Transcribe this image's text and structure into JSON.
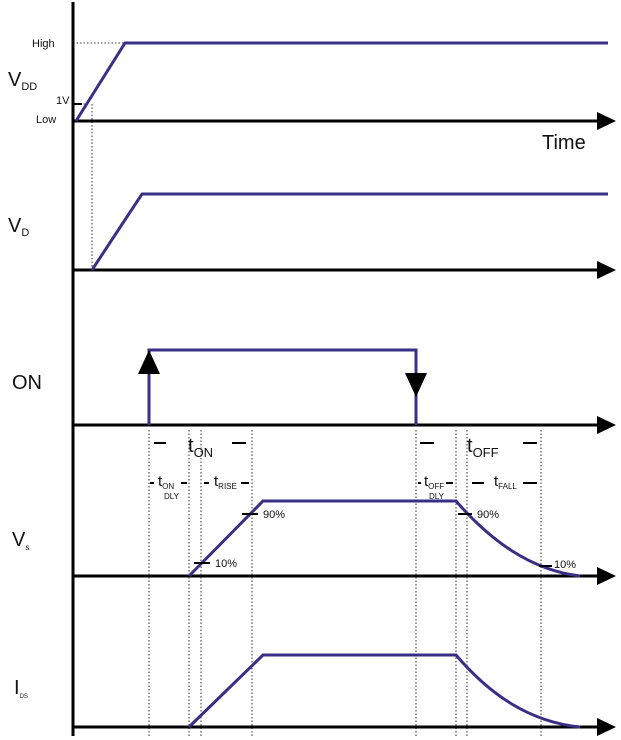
{
  "colors": {
    "signal": "#3a2f86",
    "axis": "#000000",
    "background": "#ffffff"
  },
  "labels": {
    "vdd_main": "V",
    "vdd_sub": "DD",
    "high": "High",
    "low": "Low",
    "one_v": "1V",
    "time": "Time",
    "vd_main": "V",
    "vd_sub": "D",
    "on": "ON",
    "ton_main": "t",
    "ton_sub": "ON",
    "toff_main": "t",
    "toff_sub": "OFF",
    "ton_dly_main": "t",
    "ton_dly_sub1": "ON",
    "ton_dly_sub2": "DLY",
    "trise_main": "t",
    "trise_sub": "RISE",
    "toff_dly_main": "t",
    "toff_dly_sub1": "OFF",
    "toff_dly_sub2": "DLY",
    "tfall_main": "t",
    "tfall_sub": "FALL",
    "vs_main": "V",
    "vs_sub": "s",
    "ids_main": "I",
    "ids_sub": "DS",
    "pct90_rise": "90%",
    "pct10_rise": "10%",
    "pct90_fall": "90%",
    "pct10_fall": "10%"
  }
}
